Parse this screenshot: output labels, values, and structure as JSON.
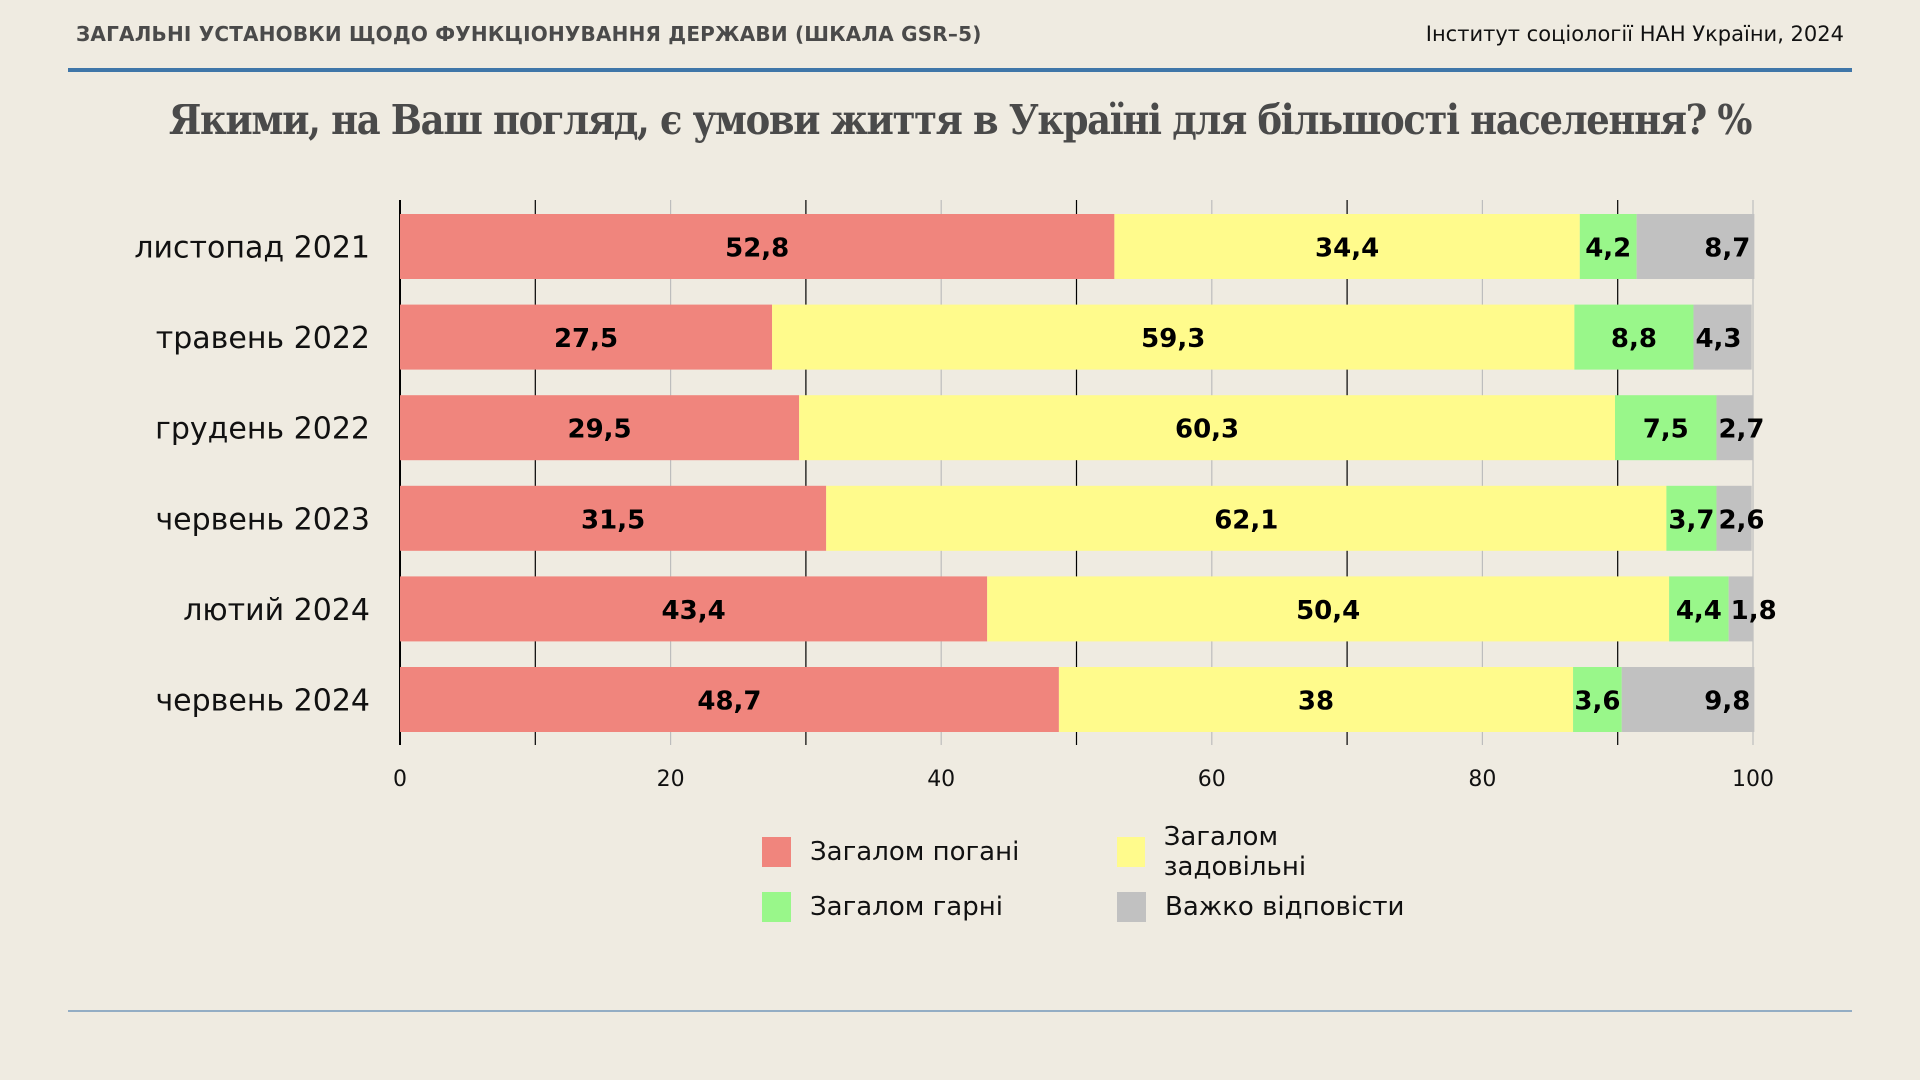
{
  "header": {
    "section_title": "ЗАГАЛЬНІ УСТАНОВКИ ЩОДО ФУНКЦІОНУВАННЯ ДЕРЖАВИ (ШКАЛА GSR–5)",
    "source": "Інститут соціології НАН України, 2024"
  },
  "chart_data": {
    "type": "bar",
    "orientation": "horizontal",
    "stacked": true,
    "title": "Якими, на Ваш погляд, є умови життя в Україні для більшості населення? %",
    "xlabel": "",
    "ylabel": "",
    "xlim": [
      0,
      100
    ],
    "xticks": [
      "0",
      "20",
      "40",
      "60",
      "80",
      "100"
    ],
    "grid": true,
    "legend_position": "bottom",
    "categories": [
      "листопад 2021",
      "травень 2022",
      "грудень 2022",
      "червень 2023",
      "лютий 2024",
      "червень 2024"
    ],
    "series": [
      {
        "name": "Загалом погані",
        "color": "#f0857d",
        "values": [
          52.8,
          27.5,
          29.5,
          31.5,
          43.4,
          48.7
        ],
        "labels": [
          "52,8",
          "27,5",
          "29,5",
          "31,5",
          "43,4",
          "48,7"
        ]
      },
      {
        "name": "Загалом задовільні",
        "color": "#fffb8c",
        "values": [
          34.4,
          59.3,
          60.3,
          62.1,
          50.4,
          38
        ],
        "labels": [
          "34,4",
          "59,3",
          "60,3",
          "62,1",
          "50,4",
          "38"
        ]
      },
      {
        "name": "Загалом гарні",
        "color": "#99f78a",
        "values": [
          4.2,
          8.8,
          7.5,
          3.7,
          4.4,
          3.6
        ],
        "labels": [
          "4,2",
          "8,8",
          "7,5",
          "3,7",
          "4,4",
          "3,6"
        ]
      },
      {
        "name": "Важко відповісти",
        "color": "#c1c1c1",
        "values": [
          8.7,
          4.3,
          2.7,
          2.6,
          1.8,
          9.8
        ],
        "labels": [
          "8,7",
          "4,3",
          "2,7",
          "2,6",
          "1,8",
          "9,8"
        ]
      }
    ]
  }
}
